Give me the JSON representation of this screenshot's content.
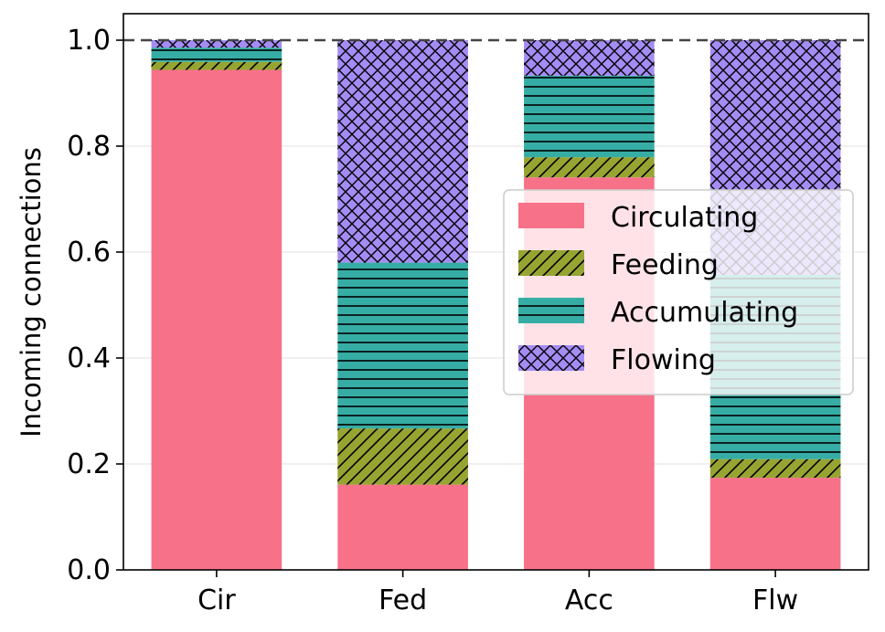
{
  "chart_data": {
    "type": "bar",
    "stacked": true,
    "title": "",
    "xlabel": "",
    "ylabel": "Incoming connections",
    "ylim": [
      0,
      1.05
    ],
    "yticks": [
      0.0,
      0.2,
      0.4,
      0.6,
      0.8,
      1.0
    ],
    "ytick_labels": [
      "0.0",
      "0.2",
      "0.4",
      "0.6",
      "0.8",
      "1.0"
    ],
    "categories": [
      "Cir",
      "Fed",
      "Acc",
      "Flw"
    ],
    "reference_line": {
      "y": 1.0,
      "style": "dashed"
    },
    "grid": "horizontal",
    "legend_position": "center-right",
    "series": [
      {
        "name": "Circulating",
        "values": [
          0.944,
          0.161,
          0.741,
          0.174
        ],
        "color": "#f77189",
        "hatch": "none"
      },
      {
        "name": "Feeding",
        "values": [
          0.015,
          0.106,
          0.038,
          0.035
        ],
        "color": "#97a431",
        "hatch": "diagonal"
      },
      {
        "name": "Accumulating",
        "values": [
          0.027,
          0.313,
          0.154,
          0.348
        ],
        "color": "#36ada4",
        "hatch": "horizontal"
      },
      {
        "name": "Flowing",
        "values": [
          0.014,
          0.42,
          0.067,
          0.443
        ],
        "color": "#a48cf4",
        "hatch": "cross"
      }
    ]
  }
}
